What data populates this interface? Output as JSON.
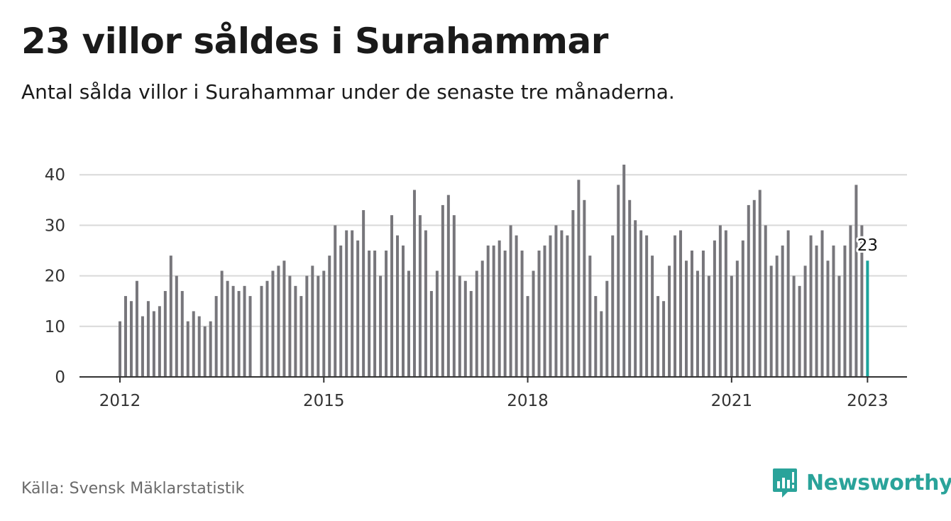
{
  "header": {
    "title": "23 villor såldes i Surahammar",
    "subtitle": "Antal sålda villor i Surahammar under de senaste tre månaderna."
  },
  "footer": {
    "source": "Källa: Svensk Mäklarstatistik",
    "brand": "Newsworthy"
  },
  "colors": {
    "bar": "#77767b",
    "highlight": "#1ba39c",
    "grid": "#d9d9d9",
    "axis": "#333333",
    "brand": "#2aa39a"
  },
  "chart_data": {
    "type": "bar",
    "x_start": "2012-01",
    "x_end": "2023-01",
    "x_unit": "month",
    "ylim": [
      0,
      42
    ],
    "yticks": [
      0,
      10,
      20,
      30,
      40
    ],
    "xticks": [
      "2012",
      "2015",
      "2018",
      "2021",
      "2023"
    ],
    "grid": true,
    "highlight_label": "23",
    "values": [
      11,
      16,
      15,
      19,
      12,
      15,
      13,
      14,
      17,
      24,
      20,
      17,
      11,
      13,
      12,
      10,
      11,
      16,
      21,
      19,
      18,
      17,
      18,
      16,
      null,
      18,
      19,
      21,
      22,
      23,
      20,
      18,
      16,
      20,
      22,
      20,
      21,
      24,
      30,
      26,
      29,
      29,
      27,
      33,
      25,
      25,
      20,
      25,
      32,
      28,
      26,
      21,
      37,
      32,
      29,
      17,
      21,
      34,
      36,
      32,
      20,
      19,
      17,
      21,
      23,
      26,
      26,
      27,
      25,
      30,
      28,
      25,
      16,
      21,
      25,
      26,
      28,
      30,
      29,
      28,
      33,
      39,
      35,
      24,
      16,
      13,
      19,
      28,
      38,
      42,
      35,
      31,
      29,
      28,
      24,
      16,
      15,
      22,
      28,
      29,
      23,
      25,
      21,
      25,
      20,
      27,
      30,
      29,
      20,
      23,
      27,
      34,
      35,
      37,
      30,
      22,
      24,
      26,
      29,
      20,
      18,
      22,
      28,
      26,
      29,
      23,
      26,
      20,
      26,
      30,
      38,
      30,
      23
    ]
  }
}
